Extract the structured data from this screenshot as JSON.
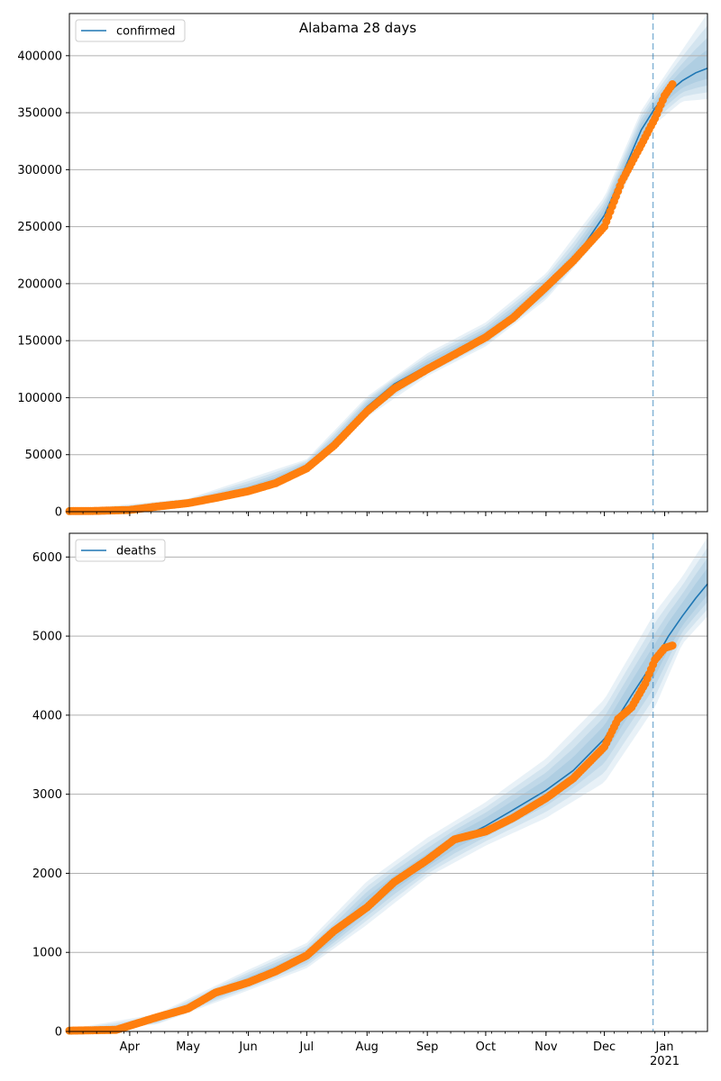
{
  "figure": {
    "title": "Alabama 28 days"
  },
  "colors": {
    "model": "#1f77b4",
    "observed": "#ff7f0e",
    "band": "#1f77b4",
    "grid": "#b0b0b0",
    "forecast_line": "#1f77b4"
  },
  "x_axis": {
    "month_labels": [
      "Apr",
      "May",
      "Jun",
      "Jul",
      "Aug",
      "Sep",
      "Oct",
      "Nov",
      "Dec",
      "Jan"
    ],
    "year_label": "2021",
    "range": [
      "2020-03-01",
      "2021-01-23"
    ],
    "forecast_start": "2020-12-26"
  },
  "chart_data": [
    {
      "type": "line",
      "legend": "confirmed",
      "legend_placement": "top-left",
      "grid": "horizontal",
      "ylim": [
        0,
        437000
      ],
      "yticks": [
        0,
        50000,
        100000,
        150000,
        200000,
        250000,
        300000,
        350000,
        400000
      ],
      "model_series": {
        "dates": [
          "2020-03-01",
          "2020-03-15",
          "2020-04-01",
          "2020-04-15",
          "2020-05-01",
          "2020-05-15",
          "2020-06-01",
          "2020-06-15",
          "2020-07-01",
          "2020-07-15",
          "2020-08-01",
          "2020-08-15",
          "2020-09-01",
          "2020-09-15",
          "2020-10-01",
          "2020-10-15",
          "2020-11-01",
          "2020-11-15",
          "2020-12-01",
          "2020-12-10",
          "2020-12-20",
          "2020-12-27",
          "2021-01-03",
          "2021-01-10",
          "2021-01-17",
          "2021-01-23"
        ],
        "values": [
          500,
          800,
          2000,
          4500,
          8500,
          12500,
          19000,
          27000,
          40000,
          60000,
          92000,
          112000,
          128000,
          140000,
          155000,
          172000,
          197000,
          220000,
          260000,
          295000,
          335000,
          354000,
          368000,
          378000,
          385000,
          389000
        ]
      },
      "uncertainty_band": {
        "dates": [
          "2020-03-01",
          "2020-05-01",
          "2020-07-01",
          "2020-08-01",
          "2020-09-01",
          "2020-10-01",
          "2020-11-01",
          "2020-12-01",
          "2020-12-20",
          "2020-12-27",
          "2021-01-10",
          "2021-01-23"
        ],
        "outer_low": [
          0,
          6000,
          35000,
          83000,
          119000,
          145000,
          186000,
          245000,
          318000,
          340000,
          360000,
          362000
        ],
        "outer_high": [
          1500,
          11500,
          46000,
          101000,
          139000,
          166000,
          209000,
          276000,
          352000,
          370000,
          405000,
          437000
        ]
      },
      "observed_series": {
        "dates": [
          "2020-03-01",
          "2020-03-15",
          "2020-04-01",
          "2020-04-15",
          "2020-05-01",
          "2020-05-15",
          "2020-06-01",
          "2020-06-15",
          "2020-07-01",
          "2020-07-15",
          "2020-08-01",
          "2020-08-15",
          "2020-09-01",
          "2020-09-15",
          "2020-10-01",
          "2020-10-15",
          "2020-11-01",
          "2020-11-15",
          "2020-12-01",
          "2020-12-10",
          "2020-12-20",
          "2020-12-27",
          "2021-01-01",
          "2021-01-05"
        ],
        "values": [
          500,
          700,
          1500,
          4500,
          7500,
          12000,
          18000,
          25000,
          38000,
          58000,
          88000,
          108000,
          125000,
          138000,
          153000,
          170000,
          197000,
          220000,
          250000,
          290000,
          322000,
          345000,
          365000,
          375000
        ]
      }
    },
    {
      "type": "line",
      "legend": "deaths",
      "legend_placement": "top-left",
      "grid": "horizontal",
      "ylim": [
        0,
        6300
      ],
      "yticks": [
        0,
        1000,
        2000,
        3000,
        4000,
        5000,
        6000
      ],
      "model_series": {
        "dates": [
          "2020-03-01",
          "2020-03-25",
          "2020-04-15",
          "2020-05-01",
          "2020-05-15",
          "2020-06-01",
          "2020-06-15",
          "2020-07-01",
          "2020-07-15",
          "2020-08-01",
          "2020-08-15",
          "2020-09-01",
          "2020-09-15",
          "2020-10-01",
          "2020-10-15",
          "2020-11-01",
          "2020-11-15",
          "2020-12-01",
          "2020-12-15",
          "2020-12-27",
          "2021-01-03",
          "2021-01-10",
          "2021-01-17",
          "2021-01-23"
        ],
        "values": [
          10,
          20,
          150,
          300,
          470,
          640,
          780,
          950,
          1220,
          1600,
          1880,
          2150,
          2400,
          2600,
          2800,
          3050,
          3300,
          3700,
          4250,
          4700,
          5000,
          5250,
          5480,
          5660
        ]
      },
      "uncertainty_band": {
        "dates": [
          "2020-03-01",
          "2020-04-15",
          "2020-06-01",
          "2020-07-01",
          "2020-08-01",
          "2020-09-01",
          "2020-10-01",
          "2020-11-01",
          "2020-12-01",
          "2020-12-27",
          "2021-01-10",
          "2021-01-23"
        ],
        "outer_low": [
          0,
          90,
          520,
          800,
          1350,
          1950,
          2350,
          2700,
          3150,
          4100,
          4900,
          5250
        ],
        "outer_high": [
          30,
          220,
          780,
          1120,
          1900,
          2450,
          2900,
          3450,
          4200,
          5300,
          5750,
          6250
        ]
      },
      "observed_series": {
        "dates": [
          "2020-03-01",
          "2020-03-25",
          "2020-04-15",
          "2020-05-01",
          "2020-05-15",
          "2020-06-01",
          "2020-06-15",
          "2020-07-01",
          "2020-07-15",
          "2020-08-01",
          "2020-08-15",
          "2020-09-01",
          "2020-09-15",
          "2020-10-01",
          "2020-10-15",
          "2020-11-01",
          "2020-11-15",
          "2020-12-01",
          "2020-12-08",
          "2020-12-15",
          "2020-12-22",
          "2020-12-27",
          "2021-01-01",
          "2021-01-05"
        ],
        "values": [
          10,
          20,
          180,
          290,
          490,
          620,
          760,
          960,
          1270,
          1570,
          1890,
          2170,
          2430,
          2530,
          2700,
          2950,
          3200,
          3600,
          3950,
          4100,
          4400,
          4700,
          4850,
          4880
        ]
      }
    }
  ]
}
